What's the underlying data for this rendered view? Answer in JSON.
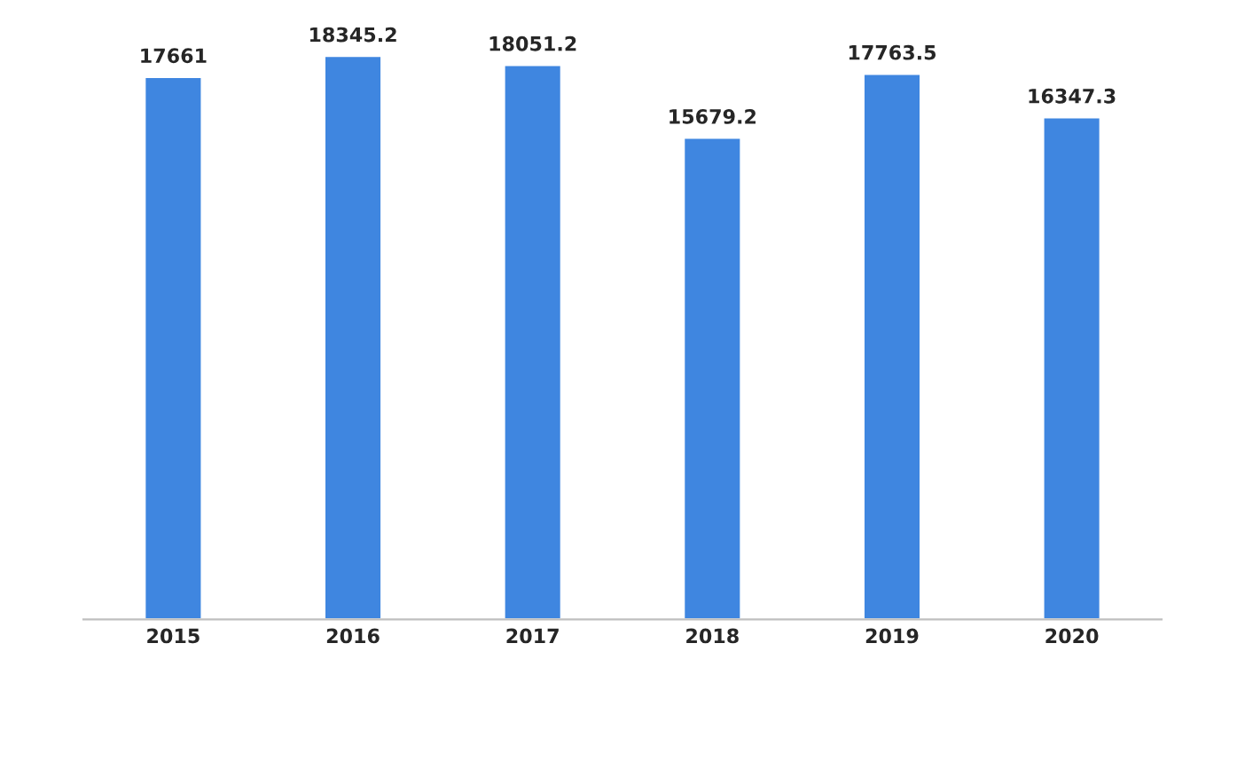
{
  "chart_data": {
    "type": "bar",
    "categories": [
      "2015",
      "2016",
      "2017",
      "2018",
      "2019",
      "2020"
    ],
    "values": [
      17661,
      18345.2,
      18051.2,
      15679.2,
      17763.5,
      16347.3
    ],
    "color": "#3f86e0",
    "data_labels": true,
    "grid": false,
    "legend": false
  }
}
